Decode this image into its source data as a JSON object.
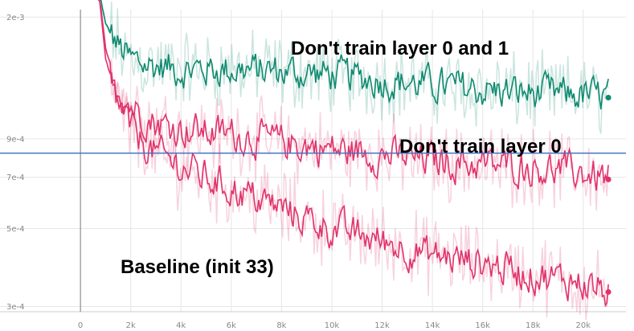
{
  "chart_data": {
    "type": "line",
    "title": "",
    "xlabel": "",
    "ylabel": "",
    "x_ticks": [
      0,
      2000,
      4000,
      6000,
      8000,
      10000,
      12000,
      14000,
      16000,
      18000,
      20000
    ],
    "x_tick_labels": [
      "0",
      "2k",
      "4k",
      "6k",
      "8k",
      "10k",
      "12k",
      "14k",
      "16k",
      "18k",
      "20k"
    ],
    "y_ticks": [
      0.0003,
      0.0005,
      0.0007,
      0.0009,
      0.002
    ],
    "y_tick_labels": [
      "3e-4",
      "5e-4",
      "7e-4",
      "9e-4",
      "2e-3"
    ],
    "xlim": [
      -3200,
      21700
    ],
    "ylim": [
      0.00029,
      0.0021
    ],
    "y_scale": "log",
    "grid": true,
    "reference_line": {
      "y": 0.00082,
      "color": "#4472c4"
    },
    "annotations": [
      {
        "text": "Don't train layer 0 and 1"
      },
      {
        "text": "Don't train layer 0"
      },
      {
        "text": "Baseline (init 33)"
      }
    ],
    "series": [
      {
        "color": "#0e8a6f",
        "x": [
          700,
          1000,
          1500,
          2000,
          3000,
          4000,
          6000,
          8000,
          10000,
          12000,
          14000,
          16000,
          18000,
          20000,
          21000
        ],
        "y": [
          0.0025,
          0.0019,
          0.00165,
          0.0015,
          0.00145,
          0.00142,
          0.00142,
          0.0014,
          0.00137,
          0.00132,
          0.00128,
          0.00124,
          0.00121,
          0.0012,
          0.00118
        ]
      },
      {
        "color": "#e0336b",
        "x": [
          700,
          1000,
          1500,
          2000,
          3000,
          4000,
          6000,
          8000,
          10000,
          12000,
          14000,
          16000,
          18000,
          20000,
          21000
        ],
        "y": [
          0.0025,
          0.0016,
          0.00125,
          0.00112,
          0.001,
          0.00096,
          0.00093,
          0.00088,
          0.00084,
          0.00081,
          0.00078,
          0.00076,
          0.00075,
          0.00072,
          0.00069
        ]
      },
      {
        "color": "#e0336b",
        "x": [
          700,
          1000,
          1500,
          2000,
          3000,
          4000,
          6000,
          8000,
          10000,
          12000,
          14000,
          16000,
          18000,
          20000,
          21000
        ],
        "y": [
          0.0025,
          0.0015,
          0.00115,
          0.00095,
          0.00082,
          0.00075,
          0.00065,
          0.00057,
          0.0005,
          0.00046,
          0.00042,
          0.0004,
          0.00037,
          0.00035,
          0.00033
        ]
      }
    ]
  }
}
